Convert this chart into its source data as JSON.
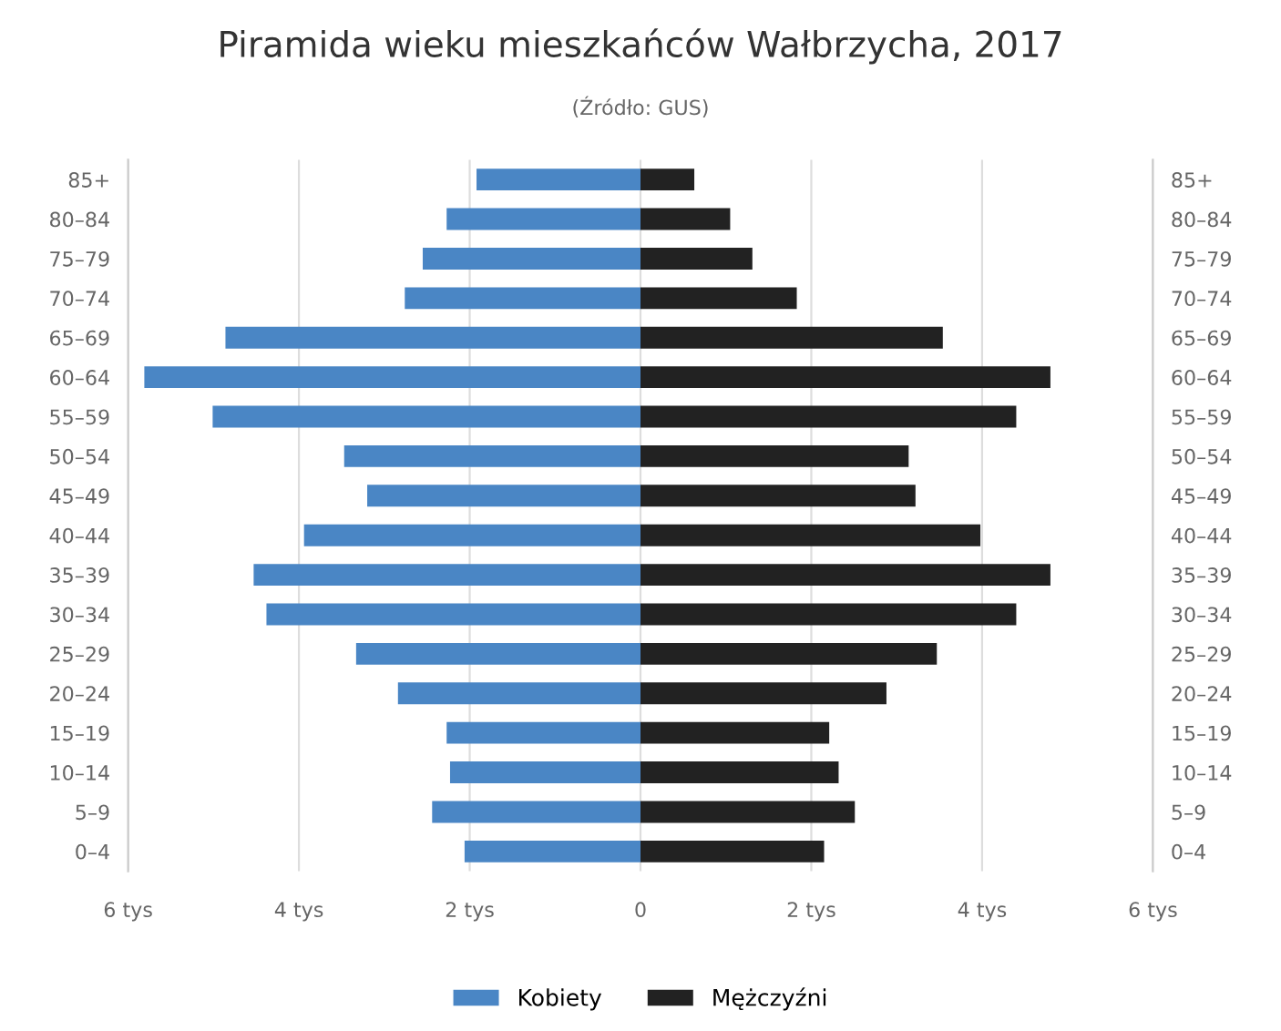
{
  "chart_data": {
    "type": "bar",
    "orientation": "horizontal",
    "title": "Piramida wieku mieszkańców Wałbrzycha, 2017",
    "subtitle": "(Źródło: GUS)",
    "categories": [
      "85+",
      "80–84",
      "75–79",
      "70–74",
      "65–69",
      "60–64",
      "55–59",
      "50–54",
      "45–49",
      "40–44",
      "35–39",
      "30–34",
      "25–29",
      "20–24",
      "15–19",
      "10–14",
      "5–9",
      "0–4"
    ],
    "series": [
      {
        "name": "Kobiety",
        "color": "#4a86c5",
        "values": [
          -1.92,
          -2.27,
          -2.55,
          -2.76,
          -4.86,
          -5.81,
          -5.01,
          -3.47,
          -3.2,
          -3.94,
          -4.53,
          -4.38,
          -3.33,
          -2.84,
          -2.27,
          -2.23,
          -2.44,
          -2.06
        ]
      },
      {
        "name": "Mężczyźni",
        "color": "#222222",
        "values": [
          0.63,
          1.05,
          1.31,
          1.83,
          3.54,
          4.8,
          4.4,
          3.14,
          3.22,
          3.98,
          4.8,
          4.4,
          3.47,
          2.88,
          2.21,
          2.32,
          2.51,
          2.15
        ]
      }
    ],
    "xlim": [
      -6,
      6
    ],
    "xticks": [
      {
        "value": -6,
        "label": "6 tys"
      },
      {
        "value": -4,
        "label": "4 tys"
      },
      {
        "value": -2,
        "label": "2 tys"
      },
      0,
      {
        "value": 2,
        "label": "2 tys"
      },
      {
        "value": 4,
        "label": "4 tys"
      },
      {
        "value": 6,
        "label": "6 tys"
      }
    ],
    "grid": "x",
    "legend": "bottom",
    "stacked": true
  }
}
